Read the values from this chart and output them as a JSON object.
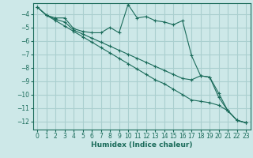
{
  "xlabel": "Humidex (Indice chaleur)",
  "ylabel": "",
  "background_color": "#cde8e8",
  "grid_color": "#aacfcf",
  "line_color": "#1a6b5a",
  "xlim": [
    -0.5,
    23.5
  ],
  "ylim": [
    -12.6,
    -3.2
  ],
  "yticks": [
    -12,
    -11,
    -10,
    -9,
    -8,
    -7,
    -6,
    -5,
    -4
  ],
  "xticks": [
    0,
    1,
    2,
    3,
    4,
    5,
    6,
    7,
    8,
    9,
    10,
    11,
    12,
    13,
    14,
    15,
    16,
    17,
    18,
    19,
    20,
    21,
    22,
    23
  ],
  "series": [
    {
      "x": [
        0,
        1,
        2,
        3,
        4,
        5,
        6,
        7,
        8,
        9,
        10,
        11,
        12,
        13,
        14,
        15,
        16,
        17,
        18,
        19,
        20,
        21,
        22,
        23
      ],
      "y": [
        -3.5,
        -4.1,
        -4.3,
        -4.3,
        -5.1,
        -5.3,
        -5.4,
        -5.4,
        -5.0,
        -5.4,
        -3.3,
        -4.3,
        -4.2,
        -4.5,
        -4.6,
        -4.8,
        -4.5,
        -7.1,
        -8.6,
        -8.7,
        -9.9,
        -11.2,
        -11.9,
        -12.1
      ]
    },
    {
      "x": [
        0,
        1,
        2,
        3,
        4,
        5,
        6,
        7,
        8,
        9,
        10,
        11,
        12,
        13,
        14,
        15,
        16,
        17,
        18,
        19,
        20,
        21,
        22,
        23
      ],
      "y": [
        -3.5,
        -4.1,
        -4.4,
        -4.6,
        -5.2,
        -5.5,
        -5.8,
        -6.1,
        -6.4,
        -6.7,
        -7.0,
        -7.3,
        -7.6,
        -7.9,
        -8.2,
        -8.5,
        -8.8,
        -8.9,
        -8.6,
        -8.7,
        -10.2,
        -11.2,
        -11.9,
        -12.1
      ]
    },
    {
      "x": [
        0,
        1,
        2,
        3,
        4,
        5,
        6,
        7,
        8,
        9,
        10,
        11,
        12,
        13,
        14,
        15,
        16,
        17,
        18,
        19,
        20,
        21,
        22,
        23
      ],
      "y": [
        -3.5,
        -4.1,
        -4.5,
        -4.9,
        -5.3,
        -5.7,
        -6.1,
        -6.5,
        -6.9,
        -7.3,
        -7.7,
        -8.1,
        -8.5,
        -8.9,
        -9.2,
        -9.6,
        -10.0,
        -10.4,
        -10.5,
        -10.6,
        -10.8,
        -11.2,
        -11.9,
        -12.1
      ]
    }
  ]
}
